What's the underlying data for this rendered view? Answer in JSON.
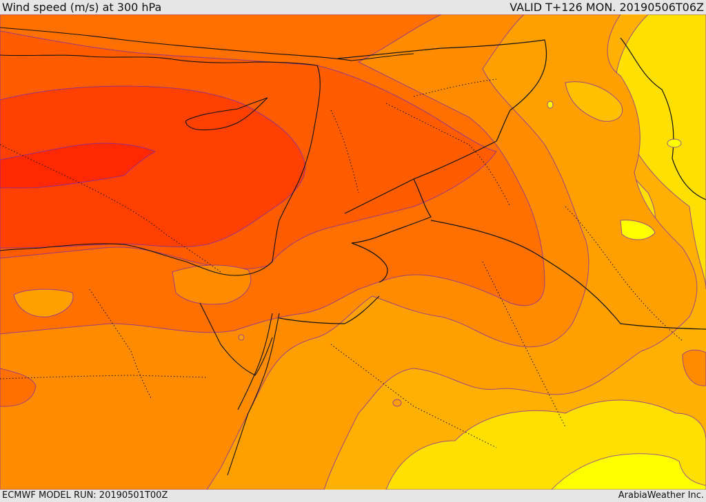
{
  "header": {
    "title": "Wind speed (m/s) at 300 hPa",
    "valid": "VALID T+126 MON. 20190506T06Z"
  },
  "footer": {
    "model_run": "ECMWF MODEL RUN: 20190501T00Z",
    "credit": "ArabiaWeather Inc."
  },
  "colors": {
    "background_band": "#ffb000",
    "band_1": "#ffff00",
    "band_2": "#ffe000",
    "band_3": "#ffc000",
    "band_4": "#ffa000",
    "band_5": "#ff8c00",
    "band_6": "#ff7000",
    "band_7": "#ff5c00",
    "band_8": "#ff4000",
    "band_9": "#ff2800",
    "contour_line": "#7a2aa8",
    "coastline": "#111111"
  }
}
